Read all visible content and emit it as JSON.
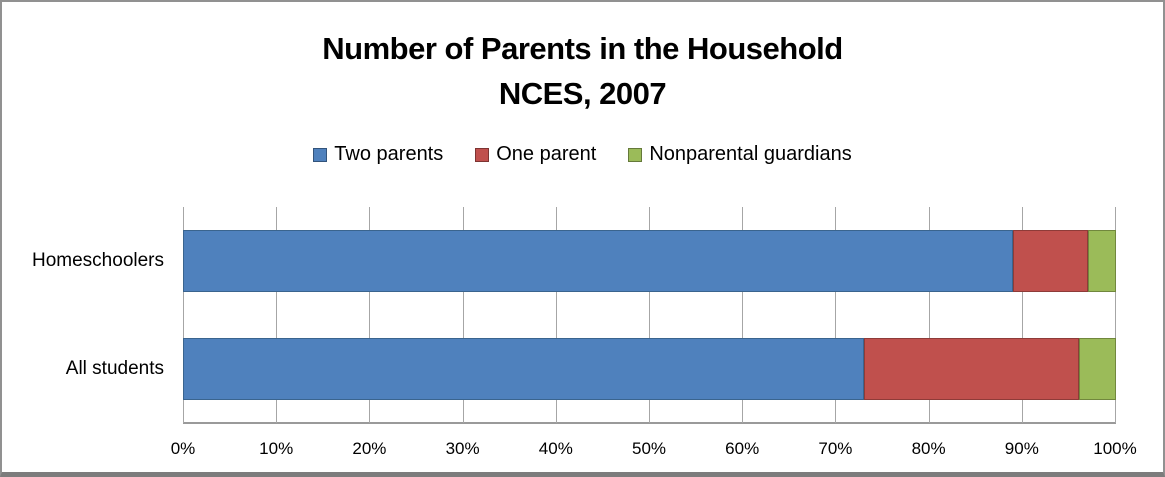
{
  "title": {
    "line1": "Number of Parents in the Household",
    "line2": "NCES, 2007"
  },
  "legend": [
    {
      "label": "Two parents",
      "color": "#4F81BD"
    },
    {
      "label": "One parent",
      "color": "#C0504D"
    },
    {
      "label": "Nonparental guardians",
      "color": "#9BBB59"
    }
  ],
  "chart_data": {
    "type": "bar",
    "orientation": "horizontal",
    "stacked": true,
    "title": "Number of Parents in the Household NCES, 2007",
    "categories": [
      "Homeschoolers",
      "All students"
    ],
    "series": [
      {
        "name": "Two parents",
        "color": "#4F81BD",
        "border_color": "#3A648E",
        "values": [
          89,
          73
        ]
      },
      {
        "name": "One parent",
        "color": "#C0504D",
        "border_color": "#8E3B38",
        "values": [
          8,
          23
        ]
      },
      {
        "name": "Nonparental guardians",
        "color": "#9BBB59",
        "border_color": "#71873D",
        "values": [
          3,
          4
        ]
      }
    ],
    "value_unit": "%",
    "xlim": [
      0,
      100
    ],
    "x_ticks": [
      "0%",
      "10%",
      "20%",
      "30%",
      "40%",
      "50%",
      "60%",
      "70%",
      "80%",
      "90%",
      "100%"
    ],
    "grid": "vertical-only",
    "gridline_color": "#A6A6A6",
    "legend_position": "top-center"
  }
}
